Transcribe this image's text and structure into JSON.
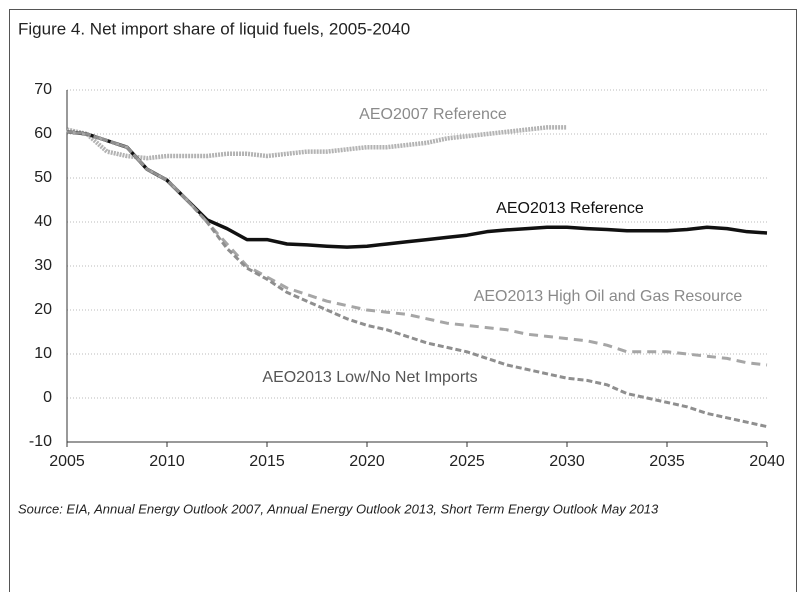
{
  "chart_data": {
    "type": "line",
    "title": "Figure 4. Net import share of liquid fuels, 2005-2040",
    "source": "Source:  EIA, Annual Energy Outlook 2007, Annual Energy Outlook 2013, Short Term Energy Outlook May 2013",
    "x": [
      2005,
      2006,
      2007,
      2008,
      2009,
      2010,
      2011,
      2012,
      2013,
      2014,
      2015,
      2016,
      2017,
      2018,
      2019,
      2020,
      2021,
      2022,
      2023,
      2024,
      2025,
      2026,
      2027,
      2028,
      2029,
      2030,
      2031,
      2032,
      2033,
      2034,
      2035,
      2036,
      2037,
      2038,
      2039,
      2040
    ],
    "xlim": [
      2005,
      2040
    ],
    "xticks": [
      2005,
      2010,
      2015,
      2020,
      2025,
      2030,
      2035,
      2040
    ],
    "ylim": [
      -10,
      70
    ],
    "yticks": [
      -10,
      0,
      10,
      20,
      30,
      40,
      50,
      60,
      70
    ],
    "grid": true,
    "series": [
      {
        "name": "AEO2007 Reference",
        "color": "#b3b3b3",
        "label_color": "#8a8a8a",
        "values": [
          61,
          60,
          56,
          55,
          54.5,
          55,
          55,
          55,
          55.5,
          55.5,
          55,
          55.5,
          56,
          56,
          56.5,
          57,
          57,
          57.5,
          58,
          59,
          59.5,
          60,
          60.5,
          61,
          61.5,
          61.5,
          null,
          null,
          null,
          null,
          null,
          null,
          null,
          null,
          null,
          null
        ]
      },
      {
        "name": "AEO2013 Reference",
        "color": "#111111",
        "label_color": "#111111",
        "values": [
          60.5,
          60,
          58.5,
          57,
          52,
          49.5,
          45,
          40.5,
          38.5,
          36,
          36,
          35,
          34.8,
          34.5,
          34.3,
          34.5,
          35,
          35.5,
          36,
          36.5,
          37,
          37.8,
          38.2,
          38.5,
          38.8,
          38.8,
          38.5,
          38.3,
          38,
          38,
          38,
          38.3,
          38.8,
          38.5,
          37.8,
          37.5
        ]
      },
      {
        "name": "AEO2013 High Oil and Gas Resource",
        "color": "#a6a6a6",
        "label_color": "#8a8a8a",
        "values": [
          60.5,
          60,
          58.5,
          57,
          52,
          49.5,
          45,
          40,
          35,
          30,
          27.5,
          25,
          23.5,
          22,
          21,
          20,
          19.5,
          19,
          18,
          17,
          16.5,
          16,
          15.5,
          14.5,
          14,
          13.5,
          13,
          12,
          10.5,
          10.5,
          10.5,
          10,
          9.5,
          9,
          8,
          7.5
        ]
      },
      {
        "name": "AEO2013 Low/No Net Imports",
        "color": "#8f8f8f",
        "label_color": "#555555",
        "values": [
          60.5,
          60,
          58.5,
          57,
          52,
          49.5,
          45,
          40,
          34,
          29.5,
          27,
          24,
          22,
          20,
          18,
          16.5,
          15.5,
          14,
          12.5,
          11.5,
          10.5,
          9,
          7.5,
          6.5,
          5.5,
          4.5,
          4,
          3,
          1,
          0,
          -1,
          -2,
          -3.5,
          -4.5,
          -5.5,
          -6.5
        ]
      }
    ]
  }
}
